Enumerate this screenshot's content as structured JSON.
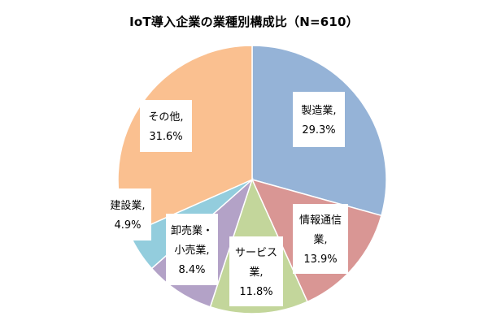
{
  "chart_data": {
    "type": "pie",
    "title": "IoT導入企業の業種別構成比（N=610）",
    "slices": [
      {
        "name": "製造業",
        "label_lines": [
          "製造業,",
          "29.3%"
        ],
        "value": 29.3,
        "color": "#95B3D7"
      },
      {
        "name": "情報通信業",
        "label_lines": [
          "情報通信",
          "業,",
          "13.9%"
        ],
        "value": 13.9,
        "color": "#D99694"
      },
      {
        "name": "サービス業",
        "label_lines": [
          "サービス",
          "業,",
          "11.8%"
        ],
        "value": 11.8,
        "color": "#C3D69B"
      },
      {
        "name": "卸売業・小売業",
        "label_lines": [
          "卸売業・",
          "小売業,",
          "8.4%"
        ],
        "value": 8.4,
        "color": "#B3A2C7"
      },
      {
        "name": "建設業",
        "label_lines": [
          "建設業,",
          "4.9%"
        ],
        "value": 4.9,
        "color": "#93CDDD"
      },
      {
        "name": "その他",
        "label_lines": [
          "その他,",
          "31.6%"
        ],
        "value": 31.6,
        "color": "#FAC090"
      }
    ],
    "start_angle_deg": 0,
    "direction": "clockwise",
    "legend": "none",
    "data_labels": "inside"
  }
}
